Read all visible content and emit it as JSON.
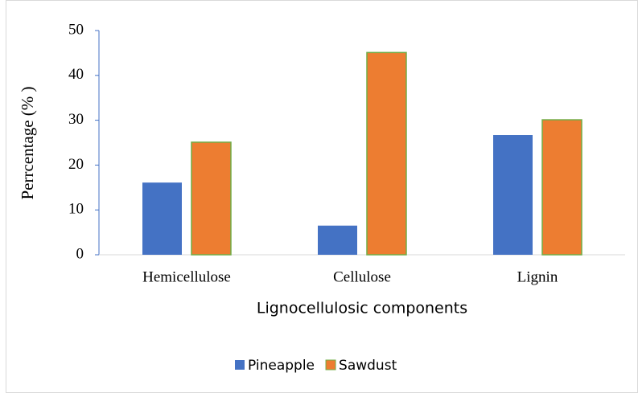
{
  "chart_data": {
    "type": "bar",
    "x_label": "Lignocellulosic components",
    "y_label": "Perrcentage (% )",
    "categories": [
      "Hemicellulose",
      "Cellulose",
      "Lignin"
    ],
    "series": [
      {
        "name": "Pineapple",
        "color": "#4472c4",
        "values": [
          16.1,
          6.5,
          26.7
        ]
      },
      {
        "name": "Sawdust",
        "color": "#ed7d31",
        "edge_color": "#70ad47",
        "values": [
          25.1,
          45.1,
          30.1
        ]
      }
    ],
    "ylim": [
      0,
      50
    ],
    "yticks": [
      0,
      10,
      20,
      30,
      40,
      50
    ],
    "grid": false,
    "legend": "bottom"
  }
}
